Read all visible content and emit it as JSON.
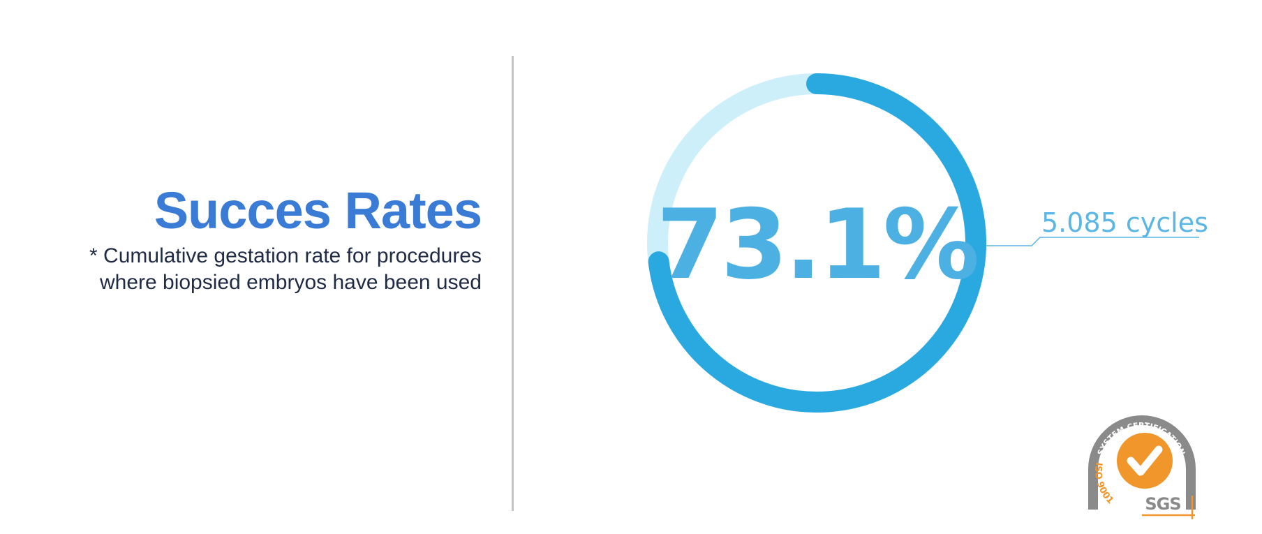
{
  "heading": {
    "title": "Succes Rates",
    "subtitle_line1": "* Cumulative gestation rate for procedures",
    "subtitle_line2": "where biopsied embryos have been used"
  },
  "chart_data": {
    "type": "radial-progress",
    "value": 73.1,
    "value_label": "73.1%",
    "max": 100,
    "annotation": "5.085 cycles"
  },
  "certification": {
    "top_text": "SYSTEM CERTIFICATION",
    "side_text": "ISO 9001",
    "brand": "SGS"
  },
  "colors": {
    "title": "#3a7bd5",
    "subtitle": "#1f2a44",
    "progress": "#2aa8e0",
    "track": "#cdeffa",
    "value_text": "#4db0e2",
    "annotation": "#5ab6e4",
    "divider": "#c4c4c4",
    "badge_orange": "#f0962a",
    "badge_gray": "#8a8a8a"
  }
}
